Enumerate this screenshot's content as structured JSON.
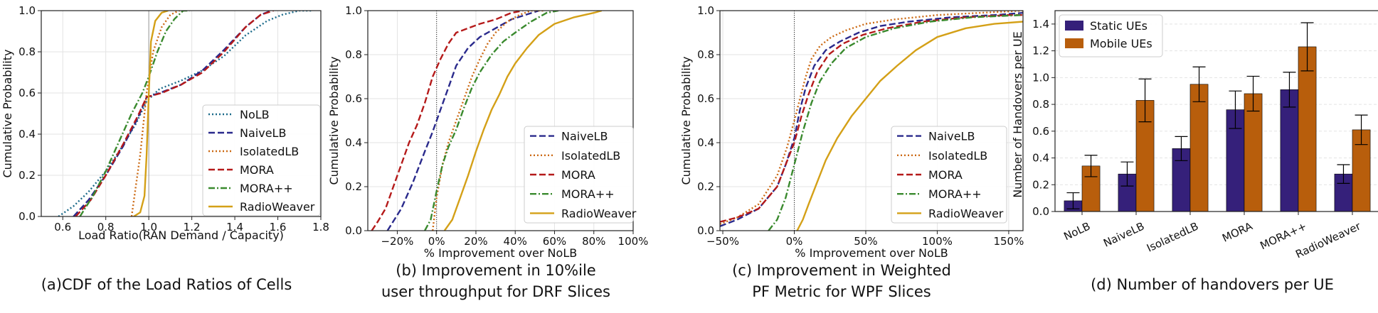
{
  "captions": {
    "a": "(a)CDF of the Load Ratios of Cells",
    "b1": "(b) Improvement in 10%ile",
    "b2": "user throughput for DRF Slices",
    "c1": "(c) Improvement in Weighted",
    "c2": "PF Metric for WPF Slices",
    "d": "(d) Number of handovers per UE"
  },
  "colors": {
    "NoLB": "#1b6a8a",
    "NaiveLB": "#2a2a8c",
    "IsolatedLB": "#cc6a14",
    "MORA": "#b51a1a",
    "MORA++": "#3a8a2e",
    "RadioWeaver": "#d4a017",
    "static": "#35207a",
    "mobile": "#b85e0c"
  },
  "chart_data": [
    {
      "id": "a",
      "type": "line",
      "ylabel": "Cumulative Probability",
      "xlabel": "Load Ratio(RAN Demand / Capacity)",
      "xlim": [
        0.5,
        1.8
      ],
      "ylim": [
        0,
        1
      ],
      "xticks": [
        0.6,
        0.8,
        1.0,
        1.2,
        1.4,
        1.6,
        1.8
      ],
      "xtick_labels": [
        "0.6",
        "0.8",
        "1.0",
        "1.2",
        "1.4",
        "1.6",
        "1.8"
      ],
      "yticks": [
        0,
        0.2,
        0.4,
        0.6,
        0.8,
        1.0
      ],
      "ytick_labels": [
        "0.0",
        "0.2",
        "0.4",
        "0.6",
        "0.8",
        "1.0"
      ],
      "vline": 1.0,
      "legend_pos": "lower-right",
      "series": [
        {
          "name": "NoLB",
          "style": "dotted",
          "x": [
            0.58,
            0.65,
            0.72,
            0.8,
            0.87,
            0.94,
            0.99,
            1.05,
            1.15,
            1.25,
            1.35,
            1.45,
            1.55,
            1.62,
            1.7,
            1.76
          ],
          "y": [
            0,
            0.05,
            0.12,
            0.22,
            0.33,
            0.45,
            0.56,
            0.62,
            0.66,
            0.71,
            0.78,
            0.88,
            0.95,
            0.98,
            1.0,
            1.0
          ]
        },
        {
          "name": "NaiveLB",
          "style": "dashed",
          "x": [
            0.65,
            0.72,
            0.8,
            0.88,
            0.95,
            0.99,
            1.05,
            1.15,
            1.25,
            1.35,
            1.45,
            1.52,
            1.57
          ],
          "y": [
            0,
            0.08,
            0.2,
            0.34,
            0.48,
            0.58,
            0.6,
            0.64,
            0.71,
            0.81,
            0.92,
            0.98,
            1.0
          ]
        },
        {
          "name": "IsolatedLB",
          "style": "dotted",
          "x": [
            0.92,
            0.96,
            0.99,
            1.02,
            1.06,
            1.1,
            1.14,
            1.16
          ],
          "y": [
            0,
            0.3,
            0.6,
            0.8,
            0.92,
            0.98,
            1.0,
            1.0
          ]
        },
        {
          "name": "MORA",
          "style": "dashed",
          "x": [
            0.66,
            0.73,
            0.8,
            0.88,
            0.95,
            0.99,
            1.06,
            1.15,
            1.25,
            1.35,
            1.45,
            1.52,
            1.58
          ],
          "y": [
            0,
            0.08,
            0.2,
            0.35,
            0.49,
            0.58,
            0.6,
            0.64,
            0.7,
            0.8,
            0.92,
            0.98,
            1.0
          ]
        },
        {
          "name": "MORA++",
          "style": "dashdot",
          "x": [
            0.68,
            0.74,
            0.8,
            0.86,
            0.92,
            0.97,
            1.0,
            1.04,
            1.08,
            1.12,
            1.16,
            1.19
          ],
          "y": [
            0,
            0.1,
            0.22,
            0.36,
            0.5,
            0.6,
            0.68,
            0.8,
            0.9,
            0.96,
            1.0,
            1.0
          ]
        },
        {
          "name": "RadioWeaver",
          "style": "solid",
          "x": [
            0.93,
            0.96,
            0.98,
            0.99,
            1.0,
            1.01,
            1.03,
            1.06,
            1.09
          ],
          "y": [
            0,
            0.02,
            0.1,
            0.3,
            0.6,
            0.85,
            0.95,
            0.99,
            1.0
          ]
        }
      ]
    },
    {
      "id": "b",
      "type": "line",
      "ylabel": "Cumulative Probability",
      "xlabel": "% Improvement over NoLB",
      "xlim": [
        -35,
        100
      ],
      "ylim": [
        0,
        1
      ],
      "xticks": [
        -20,
        0,
        20,
        40,
        60,
        80,
        100
      ],
      "xtick_labels": [
        "−20%",
        "0%",
        "20%",
        "40%",
        "60%",
        "80%",
        "100%"
      ],
      "yticks": [
        0,
        0.2,
        0.4,
        0.6,
        0.8,
        1.0
      ],
      "ytick_labels": [
        "0.0",
        "0.2",
        "0.4",
        "0.6",
        "0.8",
        "1.0"
      ],
      "vline": 0,
      "legend_pos": "lower-right",
      "series": [
        {
          "name": "NaiveLB",
          "style": "dashed",
          "x": [
            -25,
            -18,
            -12,
            -6,
            -2,
            2,
            6,
            10,
            16,
            22,
            30,
            38,
            45,
            52
          ],
          "y": [
            0,
            0.1,
            0.22,
            0.36,
            0.45,
            0.55,
            0.65,
            0.75,
            0.83,
            0.88,
            0.92,
            0.96,
            0.98,
            1.0
          ]
        },
        {
          "name": "IsolatedLB",
          "style": "dotted",
          "x": [
            -2,
            0,
            3,
            6,
            10,
            14,
            18,
            22,
            26,
            30,
            36,
            42,
            48,
            55
          ],
          "y": [
            0,
            0.15,
            0.3,
            0.4,
            0.5,
            0.6,
            0.7,
            0.78,
            0.85,
            0.9,
            0.95,
            0.98,
            1.0,
            1.0
          ]
        },
        {
          "name": "MORA",
          "style": "dashed",
          "x": [
            -33,
            -30,
            -26,
            -22,
            -18,
            -14,
            -10,
            -6,
            -2,
            2,
            6,
            10,
            16,
            22,
            30,
            38,
            44
          ],
          "y": [
            0,
            0.04,
            0.1,
            0.2,
            0.3,
            0.4,
            0.48,
            0.58,
            0.7,
            0.78,
            0.85,
            0.9,
            0.92,
            0.94,
            0.96,
            0.99,
            1.0
          ]
        },
        {
          "name": "MORA++",
          "style": "dashdot",
          "x": [
            -6,
            -3,
            0,
            3,
            6,
            10,
            14,
            18,
            22,
            28,
            34,
            40,
            48,
            56,
            62
          ],
          "y": [
            0,
            0.05,
            0.18,
            0.3,
            0.38,
            0.46,
            0.56,
            0.65,
            0.72,
            0.8,
            0.86,
            0.9,
            0.95,
            0.99,
            1.0
          ]
        },
        {
          "name": "RadioWeaver",
          "style": "solid",
          "x": [
            4,
            8,
            12,
            16,
            20,
            24,
            28,
            32,
            36,
            40,
            46,
            52,
            60,
            70,
            80,
            84
          ],
          "y": [
            0,
            0.05,
            0.15,
            0.25,
            0.36,
            0.46,
            0.55,
            0.62,
            0.7,
            0.76,
            0.83,
            0.89,
            0.94,
            0.97,
            0.99,
            1.0
          ]
        }
      ]
    },
    {
      "id": "c",
      "type": "line",
      "ylabel": "Cumulative Probability",
      "xlabel": "% Improvement over NoLB",
      "xlim": [
        -52,
        160
      ],
      "ylim": [
        0,
        1
      ],
      "xticks": [
        -50,
        0,
        50,
        100,
        150
      ],
      "xtick_labels": [
        "−50%",
        "0%",
        "50%",
        "100%",
        "150%"
      ],
      "yticks": [
        0,
        0.2,
        0.4,
        0.6,
        0.8,
        1.0
      ],
      "ytick_labels": [
        "0.0",
        "0.2",
        "0.4",
        "0.6",
        "0.8",
        "1.0"
      ],
      "vline": 0,
      "legend_pos": "lower-right",
      "series": [
        {
          "name": "NaiveLB",
          "style": "dashed",
          "x": [
            -52,
            -40,
            -25,
            -12,
            -6,
            0,
            4,
            8,
            14,
            22,
            32,
            45,
            60,
            80,
            110,
            140,
            160
          ],
          "y": [
            0.02,
            0.05,
            0.1,
            0.2,
            0.3,
            0.42,
            0.55,
            0.65,
            0.75,
            0.82,
            0.86,
            0.9,
            0.93,
            0.95,
            0.97,
            0.98,
            0.99
          ]
        },
        {
          "name": "IsolatedLB",
          "style": "dotted",
          "x": [
            -52,
            -40,
            -25,
            -12,
            -5,
            0,
            4,
            8,
            12,
            18,
            26,
            36,
            50,
            70,
            100,
            130,
            160
          ],
          "y": [
            0.03,
            0.06,
            0.12,
            0.25,
            0.38,
            0.5,
            0.6,
            0.7,
            0.78,
            0.84,
            0.88,
            0.91,
            0.94,
            0.96,
            0.98,
            0.99,
            1.0
          ]
        },
        {
          "name": "MORA",
          "style": "dashed",
          "x": [
            -52,
            -40,
            -25,
            -12,
            -6,
            0,
            5,
            10,
            16,
            24,
            34,
            48,
            65,
            90,
            120,
            150,
            160
          ],
          "y": [
            0.04,
            0.06,
            0.1,
            0.2,
            0.3,
            0.4,
            0.52,
            0.62,
            0.72,
            0.8,
            0.85,
            0.89,
            0.92,
            0.95,
            0.97,
            0.98,
            0.98
          ]
        },
        {
          "name": "MORA++",
          "style": "dashdot",
          "x": [
            -18,
            -12,
            -6,
            0,
            6,
            12,
            18,
            26,
            36,
            50,
            70,
            95,
            125,
            160
          ],
          "y": [
            0,
            0.05,
            0.15,
            0.3,
            0.45,
            0.58,
            0.68,
            0.76,
            0.83,
            0.88,
            0.92,
            0.95,
            0.97,
            0.98
          ]
        },
        {
          "name": "RadioWeaver",
          "style": "solid",
          "x": [
            2,
            6,
            10,
            16,
            22,
            30,
            40,
            50,
            60,
            72,
            85,
            100,
            120,
            140,
            160
          ],
          "y": [
            0,
            0.05,
            0.12,
            0.22,
            0.32,
            0.42,
            0.52,
            0.6,
            0.68,
            0.75,
            0.82,
            0.88,
            0.92,
            0.94,
            0.95
          ]
        }
      ]
    },
    {
      "id": "d",
      "type": "bar",
      "ylabel": "Number of Handovers per UE",
      "categories": [
        "NoLB",
        "NaiveLB",
        "IsolatedLB",
        "MORA",
        "MORA++",
        "RadioWeaver"
      ],
      "ylim": [
        0,
        1.5
      ],
      "yticks": [
        0,
        0.2,
        0.4,
        0.6,
        0.8,
        1.0,
        1.2,
        1.4
      ],
      "ytick_labels": [
        "0.0",
        "0.2",
        "0.4",
        "0.6",
        "0.8",
        "1.0",
        "1.2",
        "1.4"
      ],
      "legend_pos": "top-left",
      "series": [
        {
          "name": "Static UEs",
          "values": [
            0.08,
            0.28,
            0.47,
            0.76,
            0.91,
            0.28
          ],
          "err": [
            0.06,
            0.09,
            0.09,
            0.14,
            0.13,
            0.07
          ]
        },
        {
          "name": "Mobile UEs",
          "values": [
            0.34,
            0.83,
            0.95,
            0.88,
            1.23,
            0.61
          ],
          "err": [
            0.08,
            0.16,
            0.13,
            0.13,
            0.18,
            0.11
          ]
        }
      ]
    }
  ]
}
